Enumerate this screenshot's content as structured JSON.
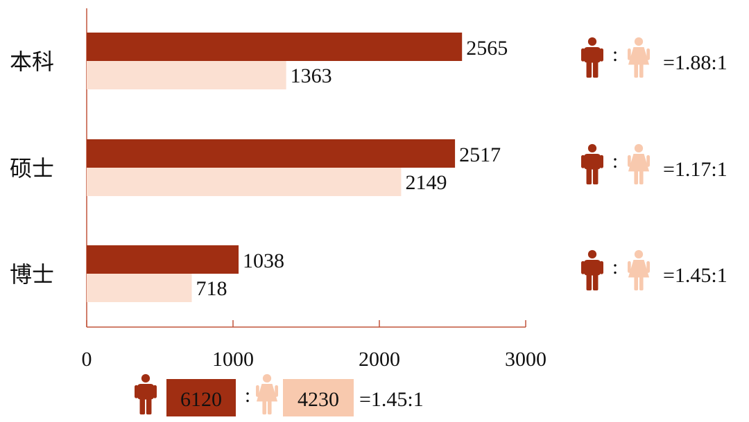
{
  "colors": {
    "male": "#A02E12",
    "female": "#FBE0D2",
    "female_icon": "#F8C9AE",
    "female_total_box": "#F8C9AE",
    "axis": "#C0533A"
  },
  "icons": {
    "male": "man-icon",
    "female": "woman-icon"
  },
  "chart_data": {
    "type": "bar",
    "orientation": "horizontal",
    "categories": [
      "本科",
      "硕士",
      "博士"
    ],
    "series": [
      {
        "values": [
          2565,
          2517,
          1038
        ]
      },
      {
        "values": [
          1363,
          2149,
          718
        ]
      }
    ],
    "xlim": [
      0,
      3000
    ],
    "xticks": [
      "0",
      "1000",
      "2000",
      "3000"
    ],
    "grid": false,
    "value_labels": {
      "male": [
        "2565",
        "2517",
        "1038"
      ],
      "female": [
        "1363",
        "2149",
        "718"
      ]
    },
    "ratios": [
      "=1.88:1",
      "=1.17:1",
      "=1.45:1"
    ],
    "ratio_colon": ":",
    "totals": {
      "male": "6120",
      "female": "4230",
      "ratio": "=1.45:1"
    }
  }
}
